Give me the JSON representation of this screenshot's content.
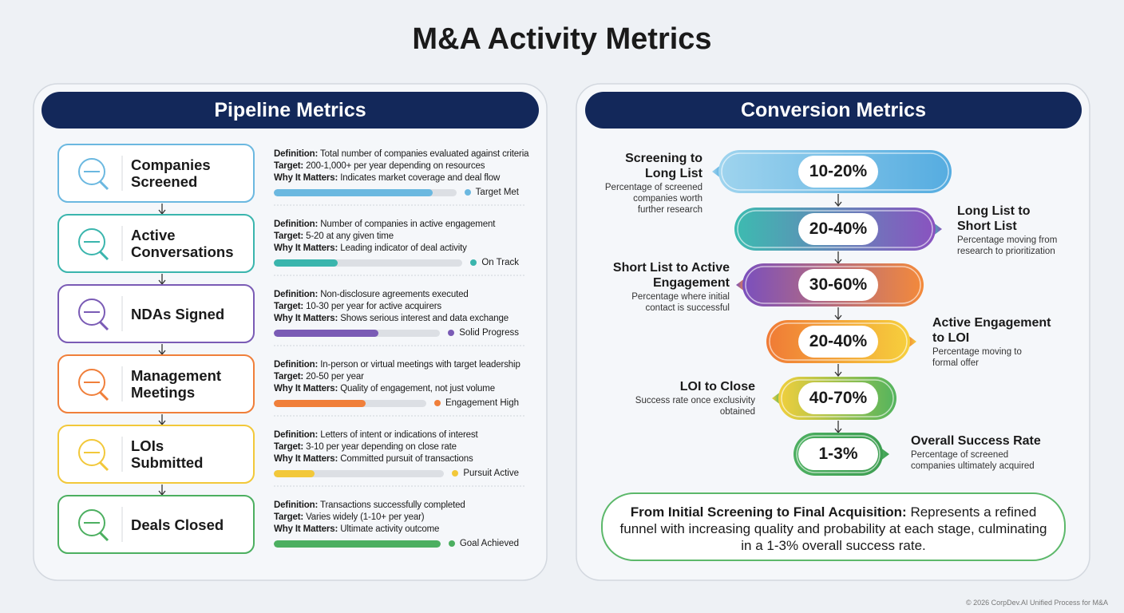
{
  "title": "M&A Activity Metrics",
  "pipeline": {
    "title": "Pipeline Metrics",
    "labels": {
      "definition": "Definition:",
      "target": "Target:",
      "why": "Why It Matters:"
    },
    "items": [
      {
        "name_lines": [
          "Companies",
          "Screened"
        ],
        "definition": "Total number of companies evaluated against criteria",
        "target": "200-1,000+ per year depending on resources",
        "why": "Indicates market coverage and deal flow",
        "status": "Target Met",
        "progress": 87,
        "color": "#6bb8e0"
      },
      {
        "name_lines": [
          "Active",
          "Conversations"
        ],
        "definition": "Number of companies in active engagement",
        "target": "5-20 at any given time",
        "why": "Leading indicator of deal activity",
        "status": "On Track",
        "progress": 34,
        "color": "#3ab5ad"
      },
      {
        "name_lines": [
          "NDAs Signed"
        ],
        "definition": "Non-disclosure agreements executed",
        "target": "10-30 per year for active acquirers",
        "why": "Shows serious interest and data exchange",
        "status": "Solid Progress",
        "progress": 63,
        "color": "#7a5bb5"
      },
      {
        "name_lines": [
          "Management",
          "Meetings"
        ],
        "definition": "In-person or virtual meetings with target leadership",
        "target": "20-50 per year",
        "why": "Quality of engagement, not just volume",
        "status": "Engagement High",
        "progress": 60,
        "color": "#f07f3a"
      },
      {
        "name_lines": [
          "LOIs",
          "Submitted"
        ],
        "definition": "Letters of intent or indications of interest",
        "target": "3-10 per year depending on close rate",
        "why": "Committed pursuit of transactions",
        "status": "Pursuit Active",
        "progress": 24,
        "color": "#f2c83a"
      },
      {
        "name_lines": [
          "Deals Closed"
        ],
        "definition": "Transactions successfully completed",
        "target": "Varies widely (1-10+ per year)",
        "why": "Ultimate activity outcome",
        "status": "Goal Achieved",
        "progress": 100,
        "color": "#4caf60"
      }
    ]
  },
  "conversion": {
    "title": "Conversion Metrics",
    "stages": [
      {
        "label_lines": [
          "Screening to",
          "Long List"
        ],
        "rate": "10-20%",
        "description_lines": [
          "Percentage of screened",
          "companies worth",
          "further research"
        ]
      },
      {
        "label_lines": [
          "Long List to",
          "Short List"
        ],
        "rate": "20-40%",
        "description_lines": [
          "Percentage moving from",
          "research to prioritization"
        ]
      },
      {
        "label_lines": [
          "Short List to Active",
          "Engagement"
        ],
        "rate": "30-60%",
        "description_lines": [
          "Percentage where initial",
          "contact is successful"
        ]
      },
      {
        "label_lines": [
          "Active Engagement",
          "to LOI"
        ],
        "rate": "20-40%",
        "description_lines": [
          "Percentage moving to",
          "formal offer"
        ]
      },
      {
        "label_lines": [
          "LOI to Close"
        ],
        "rate": "40-70%",
        "description_lines": [
          "Success rate once exclusivity",
          "obtained"
        ]
      },
      {
        "label_lines": [
          "Overall Success Rate"
        ],
        "rate": "1-3%",
        "description_lines": [
          "Percentage of screened",
          "companies ultimately acquired"
        ]
      }
    ]
  },
  "summary": {
    "lead": "From Initial Screening to Final Acquisition:",
    "text": "Represents a refined funnel with increasing quality and probability at each stage, culminating in a 1-3% overall success rate."
  },
  "footer": "© 2026 CorpDev.AI Unified Process for M&A"
}
